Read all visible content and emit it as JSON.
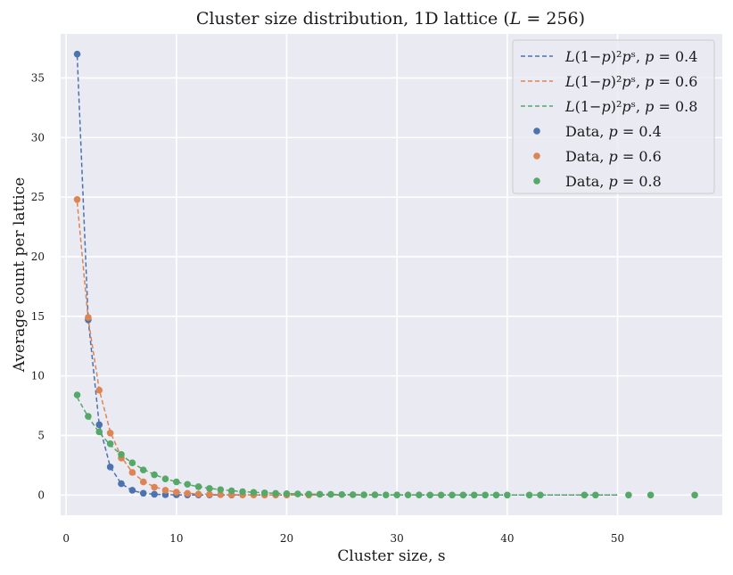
{
  "chart_data": {
    "type": "scatter",
    "title": "Cluster size distribution, 1D lattice (L = 256)",
    "xlabel": "Cluster size, s",
    "ylabel": "Average count per lattice",
    "xlim": [
      -0.5,
      59.5
    ],
    "ylim": [
      -1.7,
      38.7
    ],
    "xticks": [
      0,
      10,
      20,
      30,
      40,
      50
    ],
    "yticks": [
      0,
      5,
      10,
      15,
      20,
      25,
      30,
      35
    ],
    "grid": true,
    "legend_position": "top-right",
    "lattice_size": 256,
    "series": [
      {
        "name": "L(1−p)²pˢ, p = 0.4",
        "kind": "line",
        "style": "dashed",
        "color": "#4c72b0",
        "p": 0.4,
        "x_range": [
          1,
          50
        ]
      },
      {
        "name": "L(1−p)²pˢ, p = 0.6",
        "kind": "line",
        "style": "dashed",
        "color": "#dd8452",
        "p": 0.6,
        "x_range": [
          1,
          50
        ]
      },
      {
        "name": "L(1−p)²pˢ, p = 0.8",
        "kind": "line",
        "style": "dashed",
        "color": "#55a868",
        "p": 0.8,
        "x_range": [
          1,
          50
        ]
      },
      {
        "name": "Data, p = 0.4",
        "kind": "scatter",
        "color": "#4c72b0",
        "x": [
          1,
          2,
          3,
          4,
          5,
          6,
          7,
          8,
          9,
          10,
          11,
          12,
          13,
          15
        ],
        "y": [
          37.0,
          14.7,
          5.9,
          2.35,
          0.95,
          0.4,
          0.15,
          0.06,
          0.03,
          0.02,
          0.01,
          0.01,
          0.01,
          0.0
        ]
      },
      {
        "name": "Data, p = 0.6",
        "kind": "scatter",
        "color": "#dd8452",
        "x": [
          1,
          2,
          3,
          4,
          5,
          6,
          7,
          8,
          9,
          10,
          11,
          12,
          13,
          14,
          15,
          16,
          17,
          18,
          19,
          20,
          22
        ],
        "y": [
          24.8,
          14.9,
          8.8,
          5.2,
          3.1,
          1.9,
          1.1,
          0.65,
          0.4,
          0.24,
          0.14,
          0.08,
          0.05,
          0.03,
          0.02,
          0.01,
          0.01,
          0.0,
          0.0,
          0.0,
          0.0
        ]
      },
      {
        "name": "Data, p = 0.8",
        "kind": "scatter",
        "color": "#55a868",
        "x": [
          1,
          2,
          3,
          4,
          5,
          6,
          7,
          8,
          9,
          10,
          11,
          12,
          13,
          14,
          15,
          16,
          17,
          18,
          19,
          20,
          21,
          22,
          23,
          24,
          25,
          26,
          27,
          28,
          29,
          30,
          31,
          32,
          33,
          34,
          35,
          36,
          37,
          38,
          39,
          40,
          42,
          43,
          47,
          48,
          51,
          53,
          57
        ],
        "y": [
          8.4,
          6.6,
          5.3,
          4.3,
          3.4,
          2.7,
          2.1,
          1.7,
          1.35,
          1.1,
          0.9,
          0.7,
          0.55,
          0.45,
          0.35,
          0.28,
          0.22,
          0.18,
          0.14,
          0.11,
          0.09,
          0.07,
          0.06,
          0.05,
          0.04,
          0.03,
          0.02,
          0.02,
          0.01,
          0.01,
          0.01,
          0.01,
          0.0,
          0.0,
          0.0,
          0.0,
          0.0,
          0.0,
          0.0,
          0.0,
          0.0,
          0.0,
          0.0,
          0.0,
          0.0,
          0.0,
          0.0
        ]
      }
    ]
  }
}
